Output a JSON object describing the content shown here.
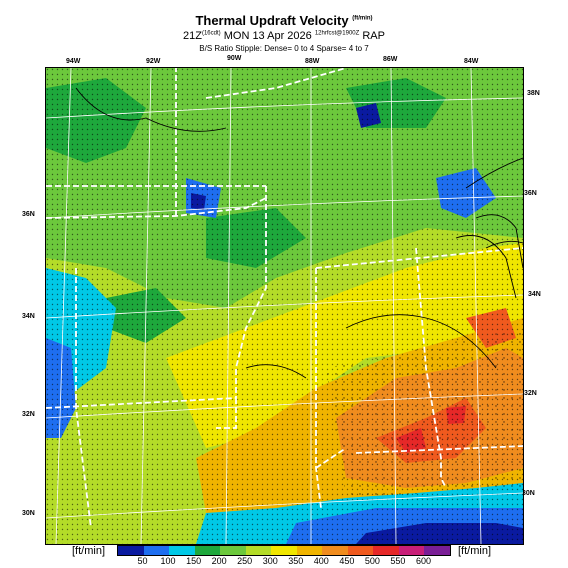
{
  "title": {
    "main": "Thermal Updraft Velocity",
    "unit_sup": "(ft/min)"
  },
  "subtitle": {
    "run": "21Z",
    "run_sup": "(16cdt)",
    "date": "MON 13 Apr 2026",
    "valid_sup": "12hrfcst@1900Z",
    "model": "RAP"
  },
  "stipple_note": "B/S Ratio Stipple: Dense= 0 to 4  Sparse= 4 to 7",
  "lon_labels": [
    "94W",
    "92W",
    "90W",
    "88W",
    "86W",
    "84W"
  ],
  "lat_labels_left": [
    "36N",
    "34N",
    "32N",
    "30N"
  ],
  "lat_labels_right": [
    "38N",
    "36N",
    "34N",
    "32N",
    "30N"
  ],
  "colorbar": {
    "unit_left": "[ft/min]",
    "unit_right": "[ft/min]",
    "labels": [
      "50",
      "100",
      "150",
      "200",
      "250",
      "300",
      "350",
      "400",
      "450",
      "500",
      "550",
      "600"
    ],
    "colors": [
      "#0a1aa0",
      "#1e6ef0",
      "#00c8e6",
      "#1ea83c",
      "#6cc83c",
      "#b4dc28",
      "#f0e600",
      "#f0b400",
      "#f08c1e",
      "#f05a1e",
      "#e62828",
      "#c81e78",
      "#7a1e96"
    ]
  }
}
